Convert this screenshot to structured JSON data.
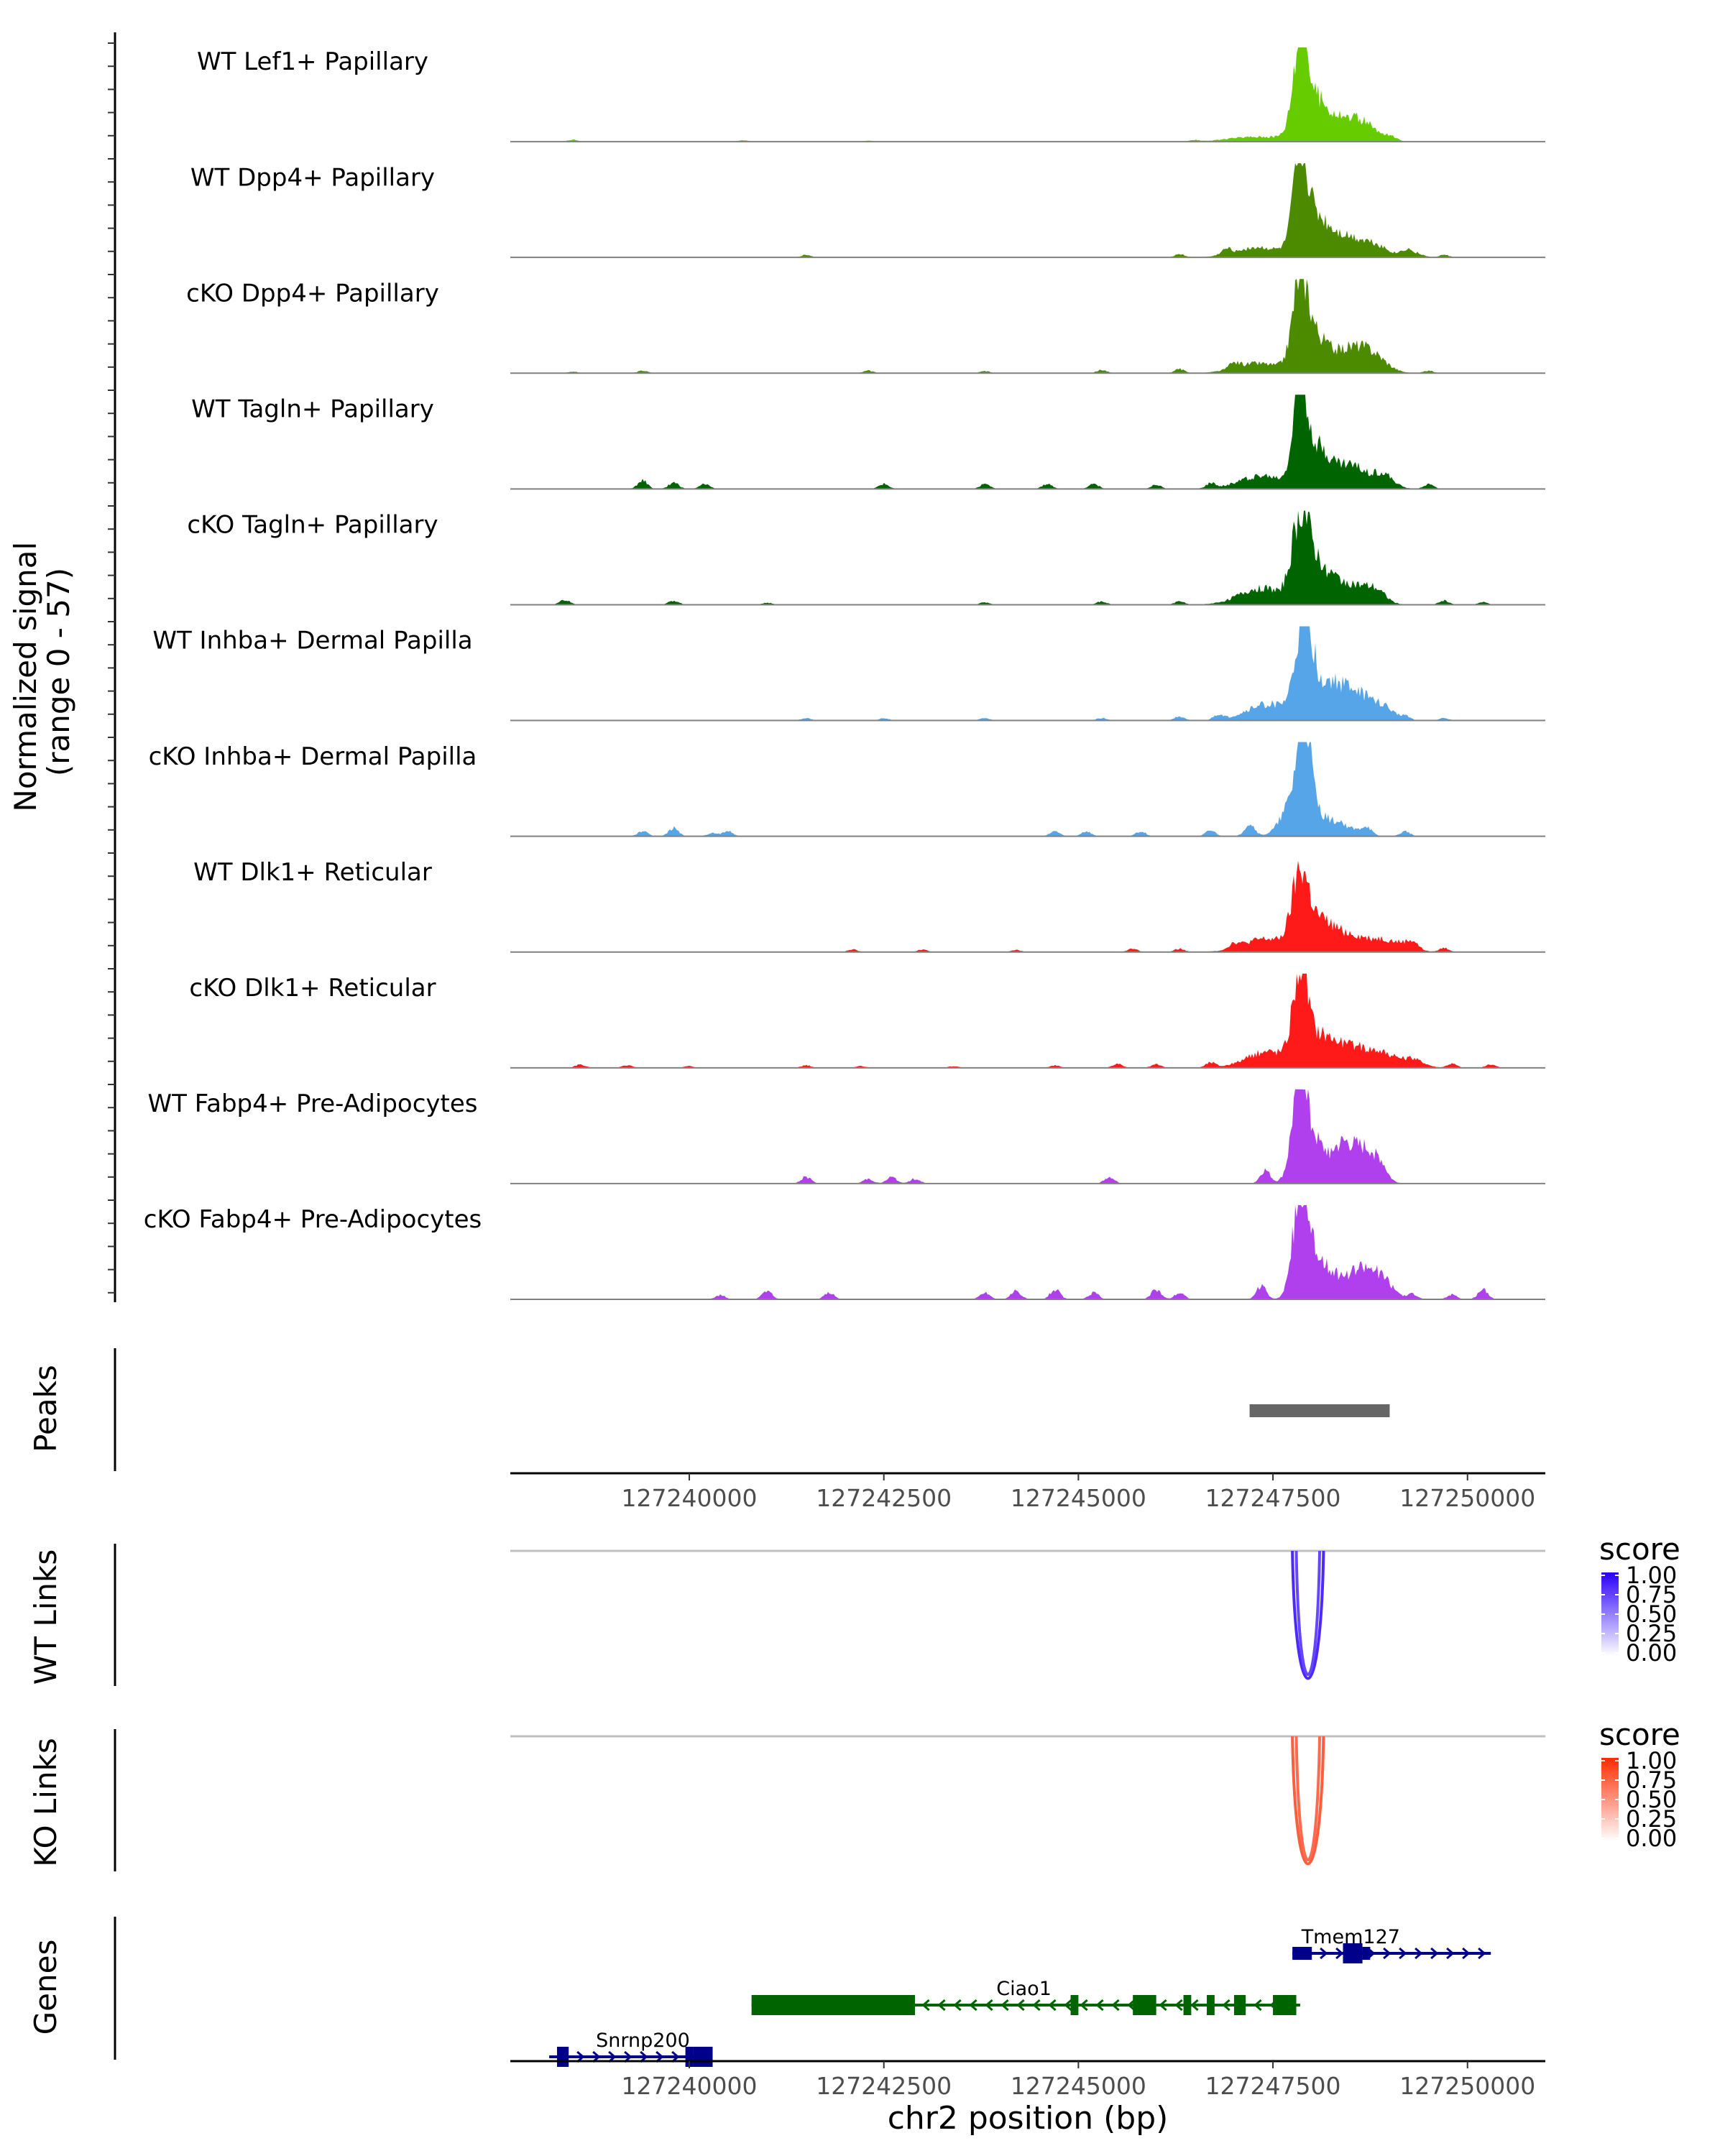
{
  "chart_data": {
    "type": "area",
    "title": "",
    "region": "chr2",
    "xlabel": "chr2 position (bp)",
    "xlim": [
      127237700,
      127251000
    ],
    "x_ticks": [
      127240000,
      127242500,
      127245000,
      127247500,
      127250000
    ],
    "x_tick_labels": [
      "127240000",
      "127242500",
      "127245000",
      "127247500",
      "127250000"
    ],
    "coverage": {
      "ylabel": "Normalized signal\n(range 0 - 57)",
      "ylabel_line1": "Normalized signal",
      "ylabel_line2": "(range 0 - 57)",
      "ylim": [
        0,
        57
      ],
      "series": [
        {
          "name": "WT Lef1+ Papillary",
          "color": "#66CC00",
          "peak_max": 52,
          "noise": [
            [
              127238500,
              1.2
            ],
            [
              127240700,
              0.8
            ],
            [
              127242300,
              0.6
            ],
            [
              127246500,
              0.8
            ]
          ],
          "peaks": [
            [
              127247300,
              500,
              3
            ],
            [
              127247850,
              120,
              52
            ],
            [
              127248000,
              250,
              25
            ],
            [
              127248400,
              300,
              13
            ],
            [
              127248700,
              200,
              7
            ],
            [
              127249000,
              120,
              3
            ]
          ]
        },
        {
          "name": "WT Dpp4+ Papillary",
          "color": "#4C8A00",
          "peak_max": 48,
          "noise": [
            [
              127241500,
              1.5
            ],
            [
              127246300,
              2
            ],
            [
              127246900,
              3
            ],
            [
              127249200,
              2.5
            ],
            [
              127249700,
              1.5
            ]
          ],
          "peaks": [
            [
              127247300,
              400,
              6
            ],
            [
              127247850,
              120,
              48
            ],
            [
              127248000,
              250,
              24
            ],
            [
              127248400,
              300,
              12
            ],
            [
              127248800,
              250,
              7
            ],
            [
              127249300,
              150,
              3
            ]
          ]
        },
        {
          "name": "cKO Dpp4+ Papillary",
          "color": "#4C8A00",
          "peak_max": 46,
          "noise": [
            [
              127238500,
              1
            ],
            [
              127239400,
              1.5
            ],
            [
              127242300,
              1.5
            ],
            [
              127243800,
              1.2
            ],
            [
              127245300,
              2
            ],
            [
              127246300,
              2.5
            ],
            [
              127247000,
              3
            ],
            [
              127249500,
              1.5
            ]
          ],
          "peaks": [
            [
              127247300,
              400,
              6
            ],
            [
              127247850,
              130,
              46
            ],
            [
              127248000,
              250,
              24
            ],
            [
              127248500,
              300,
              14
            ],
            [
              127248800,
              250,
              8
            ]
          ]
        },
        {
          "name": "WT Tagln+ Papillary",
          "color": "#006400",
          "peak_max": 56,
          "noise": [
            [
              127239400,
              5
            ],
            [
              127239800,
              4
            ],
            [
              127240200,
              3
            ],
            [
              127242500,
              3
            ],
            [
              127243800,
              3
            ],
            [
              127244600,
              3
            ],
            [
              127245200,
              3
            ],
            [
              127246000,
              2.5
            ],
            [
              127246700,
              3
            ],
            [
              127249500,
              3
            ]
          ],
          "peaks": [
            [
              127247350,
              400,
              8
            ],
            [
              127247850,
              120,
              56
            ],
            [
              127248050,
              250,
              26
            ],
            [
              127248500,
              250,
              14
            ],
            [
              127248900,
              200,
              9
            ]
          ]
        },
        {
          "name": "cKO Tagln+ Papillary",
          "color": "#006400",
          "peak_max": 42,
          "noise": [
            [
              127238400,
              3
            ],
            [
              127239800,
              2.5
            ],
            [
              127241000,
              1.2
            ],
            [
              127243800,
              1.5
            ],
            [
              127245300,
              2
            ],
            [
              127246300,
              2
            ],
            [
              127249700,
              2.5
            ],
            [
              127250200,
              1.5
            ]
          ],
          "peaks": [
            [
              127247350,
              400,
              10
            ],
            [
              127247850,
              150,
              42
            ],
            [
              127248050,
              250,
              24
            ],
            [
              127248450,
              250,
              12
            ],
            [
              127248800,
              200,
              9
            ]
          ]
        },
        {
          "name": "WT Inhba+ Dermal Papilla",
          "color": "#56A5E8",
          "peak_max": 57,
          "noise": [
            [
              127241500,
              1.5
            ],
            [
              127242500,
              1.5
            ],
            [
              127243800,
              1.5
            ],
            [
              127245300,
              1.5
            ],
            [
              127246300,
              2.5
            ],
            [
              127246800,
              3
            ],
            [
              127249200,
              2.5
            ],
            [
              127249700,
              1.5
            ]
          ],
          "peaks": [
            [
              127247450,
              400,
              10
            ],
            [
              127247900,
              150,
              57
            ],
            [
              127248200,
              250,
              20
            ],
            [
              127248550,
              250,
              16
            ],
            [
              127248900,
              200,
              8
            ]
          ]
        },
        {
          "name": "cKO Inhba+ Dermal Papilla",
          "color": "#56A5E8",
          "peak_max": 57,
          "noise": [
            [
              127239400,
              3
            ],
            [
              127239800,
              5
            ],
            [
              127240500,
              3
            ],
            [
              127240300,
              2
            ],
            [
              127244700,
              3
            ],
            [
              127245100,
              3
            ],
            [
              127245800,
              3
            ],
            [
              127246700,
              3.5
            ],
            [
              127247200,
              8
            ],
            [
              127248700,
              5
            ],
            [
              127249200,
              3
            ]
          ],
          "peaks": [
            [
              127247900,
              100,
              57
            ],
            [
              127247850,
              250,
              30
            ],
            [
              127248300,
              300,
              8
            ]
          ]
        },
        {
          "name": "WT Dlk1+ Reticular",
          "color": "#FF1A1A",
          "peak_max": 42,
          "noise": [
            [
              127242100,
              1.5
            ],
            [
              127243000,
              1.5
            ],
            [
              127244200,
              1.2
            ],
            [
              127245700,
              2
            ],
            [
              127246300,
              2
            ],
            [
              127247000,
              3
            ],
            [
              127249300,
              3
            ],
            [
              127249700,
              2.5
            ]
          ],
          "peaks": [
            [
              127247400,
              400,
              8
            ],
            [
              127247850,
              150,
              42
            ],
            [
              127248100,
              250,
              17
            ],
            [
              127248500,
              300,
              10
            ],
            [
              127248900,
              200,
              6
            ],
            [
              127249200,
              200,
              5
            ]
          ]
        },
        {
          "name": "cKO Dlk1+ Reticular",
          "color": "#FF1A1A",
          "peak_max": 55,
          "noise": [
            [
              127238600,
              2
            ],
            [
              127239200,
              1.5
            ],
            [
              127240000,
              1
            ],
            [
              127241500,
              1.5
            ],
            [
              127242200,
              1
            ],
            [
              127243400,
              1
            ],
            [
              127244700,
              1.5
            ],
            [
              127245500,
              2.5
            ],
            [
              127246000,
              2
            ],
            [
              127246700,
              3
            ],
            [
              127249800,
              2.5
            ],
            [
              127250300,
              2
            ]
          ],
          "peaks": [
            [
              127247450,
              400,
              10
            ],
            [
              127247850,
              130,
              55
            ],
            [
              127248100,
              250,
              18
            ],
            [
              127248500,
              300,
              12
            ],
            [
              127248900,
              250,
              8
            ],
            [
              127249300,
              200,
              5
            ]
          ]
        },
        {
          "name": "WT Fabp4+ Pre-Adipocytes",
          "color": "#B040EE",
          "peak_max": 56,
          "noise": [
            [
              127241500,
              4
            ],
            [
              127242300,
              3
            ],
            [
              127242600,
              4
            ],
            [
              127242900,
              3
            ],
            [
              127245400,
              4
            ],
            [
              127247400,
              8
            ],
            [
              127248900,
              4
            ]
          ],
          "peaks": [
            [
              127247850,
              130,
              56
            ],
            [
              127248000,
              250,
              24
            ],
            [
              127248400,
              200,
              18
            ],
            [
              127248750,
              200,
              14
            ],
            [
              127248600,
              250,
              8
            ]
          ]
        },
        {
          "name": "cKO Fabp4+ Pre-Adipocytes",
          "color": "#B040EE",
          "peak_max": 56,
          "noise": [
            [
              127240400,
              2.5
            ],
            [
              127241000,
              5
            ],
            [
              127241800,
              4
            ],
            [
              127243800,
              4
            ],
            [
              127244200,
              5
            ],
            [
              127244700,
              6
            ],
            [
              127245200,
              4
            ],
            [
              127246000,
              6
            ],
            [
              127246300,
              4
            ],
            [
              127247350,
              8
            ],
            [
              127249300,
              3
            ],
            [
              127249800,
              3
            ],
            [
              127250200,
              6
            ]
          ],
          "peaks": [
            [
              127247850,
              130,
              56
            ],
            [
              127248050,
              250,
              24
            ],
            [
              127248650,
              200,
              14
            ],
            [
              127248900,
              200,
              12
            ],
            [
              127248400,
              250,
              8
            ]
          ]
        }
      ]
    },
    "peaks_track": {
      "label": "Peaks",
      "color": "#666666",
      "regions": [
        [
          127247200,
          127249000
        ]
      ]
    },
    "links": [
      {
        "label": "WT Links",
        "legend_title": "score",
        "color_low": "#FFFFFF",
        "color_high": "#2A00FF",
        "legend_ticks": [
          "1.00",
          "0.75",
          "0.50",
          "0.25",
          "0.00"
        ],
        "arcs": [
          {
            "start": 127247750,
            "end": 127248150,
            "score": 0.84
          },
          {
            "start": 127247800,
            "end": 127248100,
            "score": 0.72
          }
        ]
      },
      {
        "label": "KO Links",
        "legend_title": "score",
        "color_low": "#FFFFFF",
        "color_high": "#FF2A00",
        "legend_ticks": [
          "1.00",
          "0.75",
          "0.50",
          "0.25",
          "0.00"
        ],
        "arcs": [
          {
            "start": 127247750,
            "end": 127248150,
            "score": 0.76
          },
          {
            "start": 127247800,
            "end": 127248100,
            "score": 0.7
          }
        ]
      }
    ],
    "genes_track": {
      "label": "Genes",
      "genes": [
        {
          "name": "Tmem127",
          "strand": "+",
          "color": "#00008B",
          "row": 0,
          "start": 127247750,
          "end": 127250300,
          "exons": [
            [
              127247750,
              127248000,
              "thin"
            ],
            [
              127248400,
              127248650,
              "thick"
            ],
            [
              127248650,
              127248750,
              "thin"
            ]
          ]
        },
        {
          "name": "Ciao1",
          "strand": "-",
          "color": "#006400",
          "row": 1,
          "start": 127240800,
          "end": 127247850,
          "exons": [
            [
              127240800,
              127242900,
              "thick"
            ],
            [
              127244900,
              127245000,
              "thick"
            ],
            [
              127245700,
              127246000,
              "thick"
            ],
            [
              127246350,
              127246450,
              "thick"
            ],
            [
              127246650,
              127246750,
              "thick"
            ],
            [
              127247000,
              127247150,
              "thick"
            ],
            [
              127247500,
              127247800,
              "thick"
            ]
          ]
        },
        {
          "name": "Snrnp200",
          "strand": "+",
          "color": "#00008B",
          "row": 2,
          "start": 127238200,
          "end": 127240300,
          "exons": [
            [
              127238300,
              127238450,
              "thick"
            ],
            [
              127239950,
              127240050,
              "thick"
            ],
            [
              127240050,
              127240300,
              "thick"
            ]
          ]
        }
      ]
    }
  }
}
